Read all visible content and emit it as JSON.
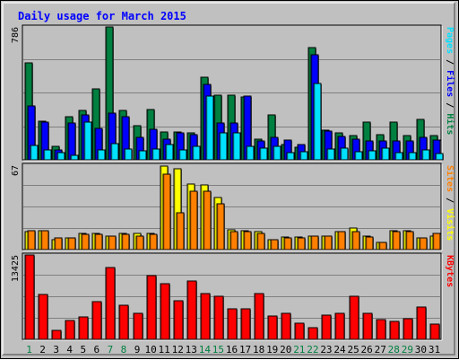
{
  "chart_data": {
    "type": "bar",
    "title": "Daily usage for March 2015",
    "categories": [
      "1",
      "2",
      "3",
      "4",
      "5",
      "6",
      "7",
      "8",
      "9",
      "10",
      "11",
      "12",
      "13",
      "14",
      "15",
      "16",
      "17",
      "18",
      "19",
      "20",
      "21",
      "22",
      "23",
      "24",
      "25",
      "26",
      "27",
      "28",
      "29",
      "30",
      "31"
    ],
    "weekend_days": [
      "1",
      "7",
      "8",
      "14",
      "15",
      "21",
      "22",
      "28",
      "29"
    ],
    "panels": [
      {
        "name": "top",
        "ymax": 786,
        "ymax_label": "786",
        "axis_label_parts": [
          "Pages",
          "Files",
          "Hits"
        ],
        "axis_label_separator": " / ",
        "series": [
          {
            "name": "Hits",
            "color": "#008040",
            "values": [
              574,
              228,
              79,
              253,
              294,
              419,
              786,
              290,
              203,
              298,
              166,
              162,
              161,
              486,
              381,
              381,
              372,
              124,
              265,
              90,
              75,
              663,
              177,
              158,
              143,
              222,
              148,
              225,
              146,
              241,
              144
            ]
          },
          {
            "name": "Files",
            "color": "#0000ff",
            "values": [
              319,
              224,
              56,
              216,
              266,
              184,
              277,
              253,
              134,
              181,
              121,
              160,
              148,
              446,
              218,
              218,
              377,
              110,
              134,
              116,
              91,
              624,
              171,
              136,
              122,
              114,
              110,
              110,
              110,
              134,
              118
            ]
          },
          {
            "name": "Pages",
            "color": "#00e0ff",
            "values": [
              87,
              60,
              40,
              28,
              223,
              60,
              93,
              64,
              52,
              64,
              88,
              58,
              78,
              376,
              159,
              159,
              79,
              68,
              78,
              45,
              48,
              450,
              65,
              68,
              49,
              54,
              70,
              45,
              43,
              57,
              38
            ]
          }
        ]
      },
      {
        "name": "middle",
        "ymax": 67,
        "ymax_label": "67",
        "axis_label_parts": [
          "Sites",
          "Visits"
        ],
        "axis_label_separator": " / ",
        "series": [
          {
            "name": "Visits",
            "color": "#ffff00",
            "values": [
              14,
              15,
              8,
              9,
              13,
              13,
              11,
              13,
              13,
              13,
              66,
              64,
              52,
              51,
              41,
              16,
              15,
              14,
              8,
              10,
              10,
              11,
              11,
              14,
              17,
              11,
              6,
              15,
              15,
              9,
              11
            ]
          },
          {
            "name": "Sites",
            "color": "#ff8000",
            "values": [
              15,
              15,
              9,
              9,
              12,
              12,
              11,
              12,
              11,
              12,
              60,
              29,
              46,
              46,
              36,
              14,
              14,
              13,
              8,
              9,
              9,
              11,
              11,
              14,
              14,
              10,
              6,
              14,
              14,
              9,
              13
            ]
          }
        ]
      },
      {
        "name": "bottom",
        "ymax": 13425,
        "ymax_label": "13425",
        "axis_label_parts": [
          "KBytes"
        ],
        "axis_label_separator": "",
        "series": [
          {
            "name": "KBytes",
            "color": "#ff0000",
            "values": [
              13425,
              7100,
              1400,
              3000,
              3500,
              6050,
              11400,
              5400,
              4200,
              10100,
              8800,
              6200,
              9300,
              7300,
              6900,
              4800,
              4900,
              7300,
              3700,
              4100,
              2550,
              1800,
              3900,
              4100,
              6900,
              4100,
              3200,
              2900,
              3250,
              5200,
              2400
            ]
          }
        ]
      }
    ]
  }
}
